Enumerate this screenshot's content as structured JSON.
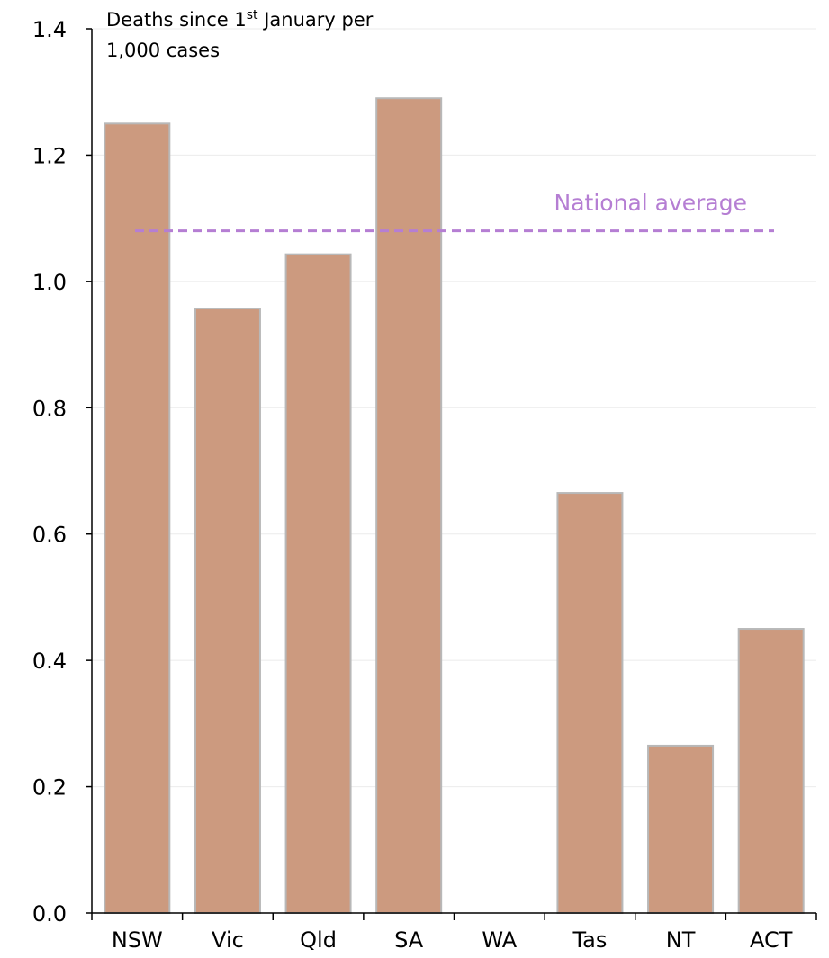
{
  "chart_data": {
    "type": "bar",
    "categories": [
      "NSW",
      "Vic",
      "Qld",
      "SA",
      "WA",
      "Tas",
      "NT",
      "ACT"
    ],
    "values": [
      1.25,
      0.957,
      1.043,
      1.29,
      0,
      0.665,
      0.265,
      0.45
    ],
    "ylabel_line1": "Deaths since 1",
    "ylabel_sup": "st",
    "ylabel_line1_rest": " January per",
    "ylabel_line2": "1,000 cases",
    "ylim": [
      0,
      1.4
    ],
    "yticks": [
      "0.0",
      "0.2",
      "0.4",
      "0.6",
      "0.8",
      "1.0",
      "1.2",
      "1.4"
    ],
    "ytick_values": [
      0,
      0.2,
      0.4,
      0.6,
      0.8,
      1.0,
      1.2,
      1.4
    ],
    "reference_line": {
      "label": "National average",
      "value": 1.08,
      "style": "dashed"
    },
    "grid": true,
    "colors": {
      "bar": "#cc9a7f",
      "bar_edge": "#b8b8b8",
      "reference": "#b57ed3",
      "grid": "#ebebeb",
      "axis": "#000000"
    }
  }
}
